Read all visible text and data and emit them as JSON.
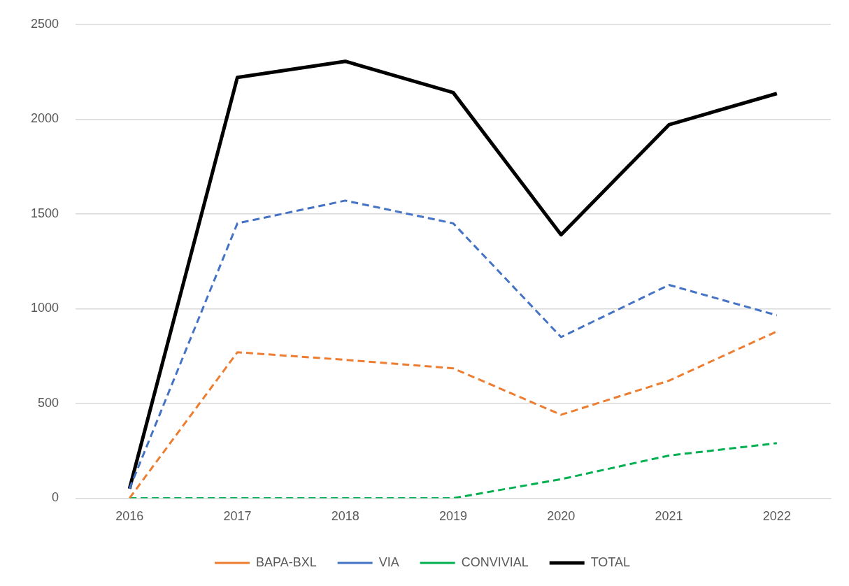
{
  "chart_data": {
    "type": "line",
    "categories": [
      "2016",
      "2017",
      "2018",
      "2019",
      "2020",
      "2021",
      "2022"
    ],
    "series": [
      {
        "name": "BAPA-BXL",
        "color": "#ed7d31",
        "line_style": "dashed",
        "values": [
          0,
          770,
          730,
          685,
          440,
          620,
          880
        ]
      },
      {
        "name": "VIA",
        "color": "#4472c4",
        "line_style": "dashed",
        "values": [
          50,
          1450,
          1570,
          1450,
          850,
          1125,
          965
        ]
      },
      {
        "name": "CONVIVIAL",
        "color": "#00b050",
        "line_style": "dashed",
        "values": [
          0,
          0,
          0,
          0,
          100,
          225,
          290
        ]
      },
      {
        "name": "TOTAL",
        "color": "#000000",
        "line_style": "solid",
        "values": [
          50,
          2220,
          2305,
          2140,
          1390,
          1970,
          2135
        ]
      }
    ],
    "ylim": [
      0,
      2500
    ],
    "yticks": [
      0,
      500,
      1000,
      1500,
      2000,
      2500
    ],
    "grid": "y",
    "legend": "bottom",
    "marker": "none"
  }
}
